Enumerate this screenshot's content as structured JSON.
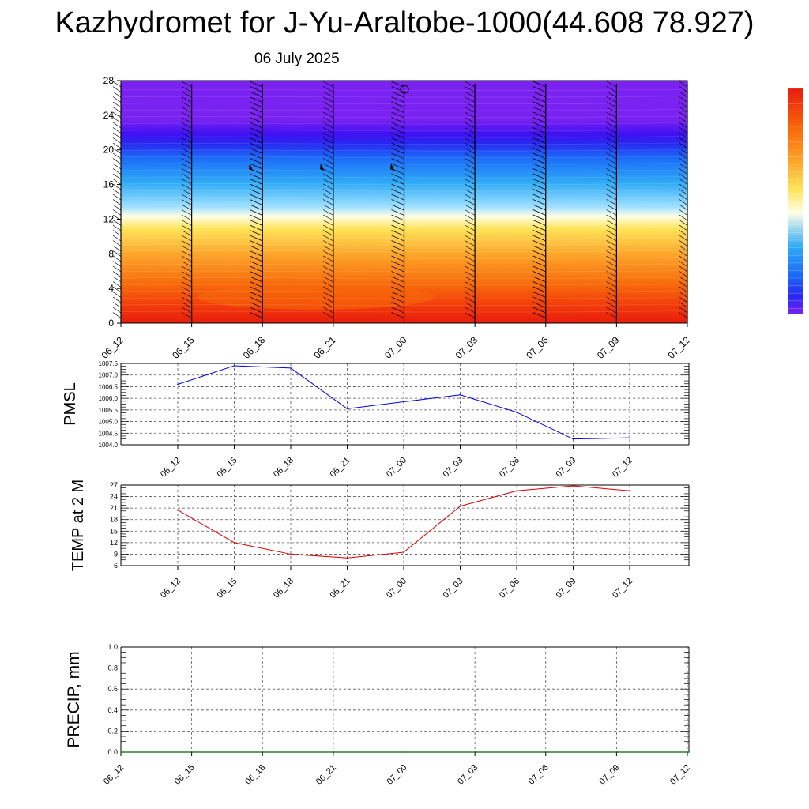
{
  "title": "Kazhydromet for J-Yu-Araltobe-1000(44.608 78.927)",
  "subtitle": "06 July 2025",
  "colors": {
    "pmsl_line": "#0000dd",
    "temp_line": "#dd0000",
    "precip_line": "#006600",
    "grid": "#555555"
  },
  "chart_data": [
    {
      "type": "heatmap",
      "title": "",
      "x_tick_labels": [
        "06_12",
        "06_15",
        "06_18",
        "06_21",
        "07_00",
        "07_03",
        "07_06",
        "07_09",
        "07_12"
      ],
      "y_ticks": [
        0,
        4,
        8,
        12,
        16,
        20,
        24,
        28
      ],
      "ylim": [
        0,
        28
      ],
      "colormap": [
        "#e81c0c",
        "#f23a0a",
        "#f86a0a",
        "#fca42a",
        "#fee45a",
        "#ffffe8",
        "#9fe0ff",
        "#2eaaf6",
        "#1c6cfa",
        "#2828f0",
        "#4010f2",
        "#7a22f2"
      ],
      "colorbar": "vertical-right",
      "wind_barbs": true,
      "wind_barb_x_ticks": [
        "06_12",
        "06_15",
        "06_18",
        "06_21",
        "07_00",
        "07_03",
        "07_06",
        "07_09",
        "07_12"
      ]
    },
    {
      "type": "line",
      "ylabel": "PMSL",
      "x_tick_labels": [
        "06_12",
        "06_15",
        "06_18",
        "06_21",
        "07_00",
        "07_03",
        "07_06",
        "07_09",
        "07_12"
      ],
      "y_tick_labels": [
        "1004.0",
        "1004.5",
        "1005.0",
        "1005.5",
        "1006.0",
        "1006.5",
        "1007.0",
        "1007.5"
      ],
      "ylim": [
        1004.0,
        1007.5
      ],
      "series": [
        {
          "values": [
            1006.6,
            1007.4,
            1007.3,
            1005.55,
            1005.85,
            1006.15,
            1005.4,
            1004.25,
            1004.3
          ]
        }
      ],
      "grid": true
    },
    {
      "type": "line",
      "ylabel": "TEMP at 2 M",
      "x_tick_labels": [
        "06_12",
        "06_15",
        "06_18",
        "06_21",
        "07_00",
        "07_03",
        "07_06",
        "07_09",
        "07_12"
      ],
      "y_tick_labels": [
        "6",
        "9",
        "12",
        "15",
        "18",
        "21",
        "24",
        "27"
      ],
      "ylim": [
        6,
        27
      ],
      "series": [
        {
          "values": [
            20.5,
            12.0,
            9.0,
            8.0,
            9.5,
            21.5,
            25.5,
            26.8,
            25.5
          ]
        }
      ],
      "grid": true
    },
    {
      "type": "line",
      "ylabel": "PRECIP, mm",
      "x_tick_labels": [
        "06_12",
        "06_15",
        "06_18",
        "06_21",
        "07_00",
        "07_03",
        "07_06",
        "07_09",
        "07_12"
      ],
      "y_tick_labels": [
        "0.0",
        "0.2",
        "0.4",
        "0.6",
        "0.8",
        "1.0"
      ],
      "ylim": [
        0.0,
        1.0
      ],
      "series": [
        {
          "values": [
            0,
            0,
            0,
            0,
            0,
            0,
            0,
            0,
            0
          ]
        }
      ],
      "grid": true
    }
  ]
}
